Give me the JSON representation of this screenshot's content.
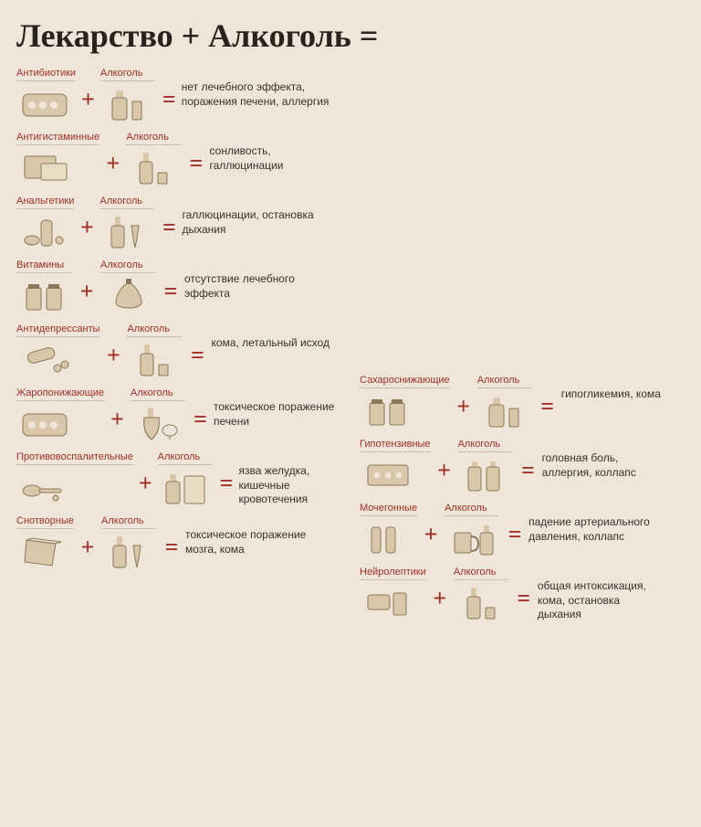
{
  "title": "Лекарство + Алкоголь =",
  "colors": {
    "bg": "#efe6d9",
    "accent": "#a03028",
    "text": "#3a3028",
    "icon_fill": "#d8c7a8",
    "icon_stroke": "#8a7a5c",
    "rule": "#c9bfae"
  },
  "typography": {
    "title_fontsize": 36,
    "label_fontsize": 11,
    "effect_fontsize": 12
  },
  "alcohol_label": "Алкоголь",
  "plus": "+",
  "equals": "=",
  "left": [
    {
      "med": "Антибиотики",
      "med_icon": "blister",
      "alc_icon": "bottle-glass",
      "effect": "нет лечебного эффекта, поражения печени, аллергия"
    },
    {
      "med": "Антигистаминные",
      "med_icon": "box-blister",
      "alc_icon": "bottle-shot",
      "effect": "сонливость, галлюцинации"
    },
    {
      "med": "Анальгетики",
      "med_icon": "vial-pills",
      "alc_icon": "bottle-flute",
      "effect": "галлюцинации, остановка дыхания"
    },
    {
      "med": "Витамины",
      "med_icon": "jars",
      "alc_icon": "decanter",
      "effect": "отсутствие лечебного эффекта"
    },
    {
      "med": "Антидепрессанты",
      "med_icon": "tube-pills",
      "alc_icon": "bottle-shot",
      "effect": "кома, летальный исход"
    },
    {
      "med": "Жаропонижающие",
      "med_icon": "blister",
      "alc_icon": "cognac",
      "effect": "токсическое поражение печени"
    },
    {
      "med": "Противовоспалительные",
      "med_icon": "spoon-pills",
      "alc_icon": "bottle-box",
      "effect": "язва желудка, кишечные кровотечения"
    },
    {
      "med": "Снотворные",
      "med_icon": "packet",
      "alc_icon": "bottle-flute",
      "effect": "токсическое поражение мозга, кома"
    }
  ],
  "right": [
    {
      "med": "Сахароснижающие",
      "med_icon": "jars",
      "alc_icon": "bottle-glass",
      "effect": "гипогликемия, кома"
    },
    {
      "med": "Гипотензивные",
      "med_icon": "blister-strip",
      "alc_icon": "two-bottles",
      "effect": "головная боль, аллергия, коллапс"
    },
    {
      "med": "Мочегонные",
      "med_icon": "vials",
      "alc_icon": "mug-bottle",
      "effect": "падение артериального давления, коллапс"
    },
    {
      "med": "Нейролептики",
      "med_icon": "blister-jar",
      "alc_icon": "bottle-shot",
      "effect": "общая интоксикация, кома, остановка дыхания"
    }
  ]
}
